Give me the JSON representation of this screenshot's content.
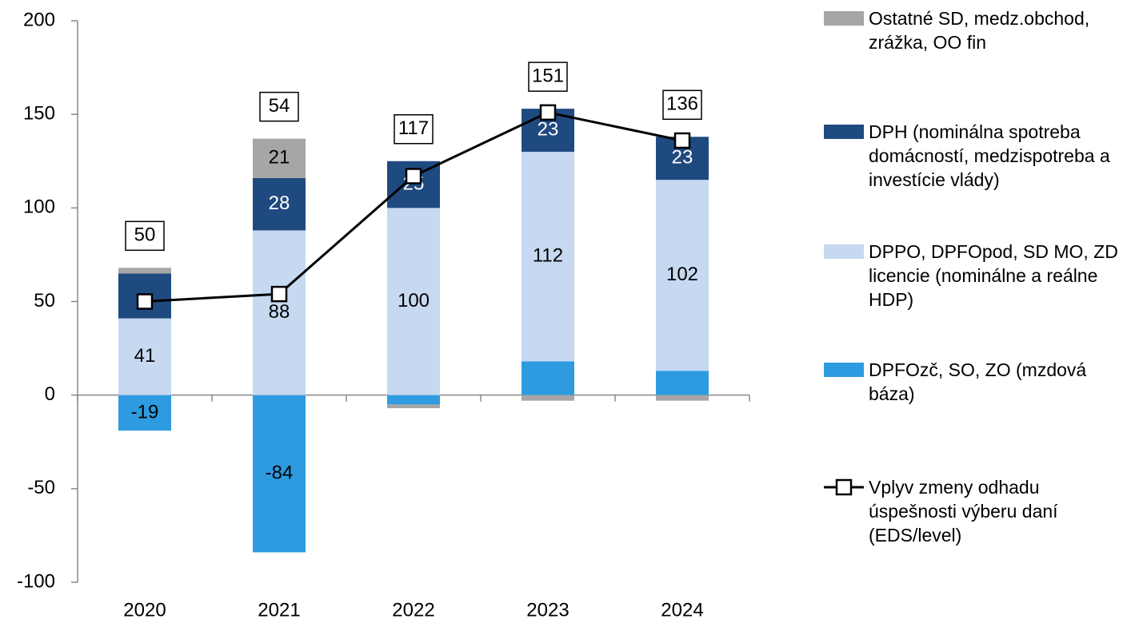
{
  "chart_data": {
    "type": "bar",
    "stacked": true,
    "categories": [
      "2020",
      "2021",
      "2022",
      "2023",
      "2024"
    ],
    "ylim": [
      -100,
      200
    ],
    "yticks": [
      -100,
      -50,
      0,
      50,
      100,
      150,
      200
    ],
    "grid": false,
    "legend": "right",
    "series": [
      {
        "name": "DPFOzč, SO, ZO (mzdová báza)",
        "color": "#2e9be0",
        "label_color": "#000000",
        "values": [
          -19,
          -84,
          -5,
          18,
          13
        ],
        "value_labels": [
          "-19",
          "-84",
          null,
          null,
          null
        ]
      },
      {
        "name": "DPPO, DPFOpod, SD MO, ZD licencie (nominálne a reálne HDP)",
        "color": "#c6d9f1",
        "label_color": "#000000",
        "values": [
          41,
          88,
          100,
          112,
          102
        ],
        "value_labels": [
          "41",
          "88",
          "100",
          "112",
          "102"
        ]
      },
      {
        "name": "DPH (nominálna spotreba domácností, medzispotreba a investície vlády)",
        "color": "#1f4a80",
        "label_color": "#ffffff",
        "values": [
          24,
          28,
          25,
          23,
          23
        ],
        "value_labels": [
          null,
          "28",
          "25",
          "23",
          "23"
        ]
      },
      {
        "name": "Ostatné SD, medz.obchod, zrážka, OO fin",
        "color": "#a6a6a6",
        "label_color": "#000000",
        "values": [
          3,
          21,
          -2,
          -3,
          -3
        ],
        "value_labels": [
          null,
          "21",
          null,
          null,
          null
        ]
      },
      {
        "name": "Vplyv zmeny odhadu úspešnosti výberu daní (EDS/level)",
        "type": "line",
        "color": "#000000",
        "values": [
          50,
          54,
          117,
          151,
          136
        ]
      }
    ]
  }
}
